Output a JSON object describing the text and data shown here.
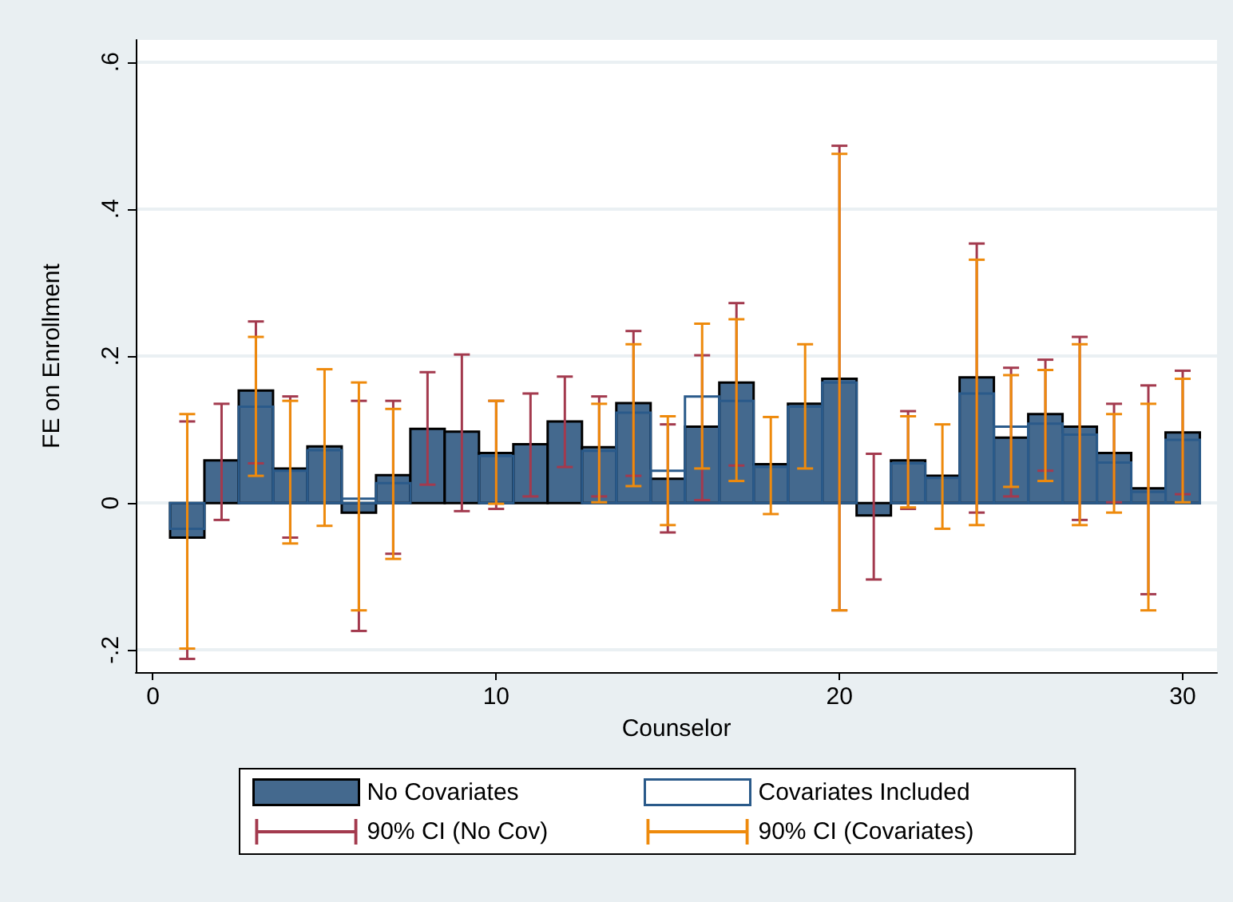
{
  "chart_data": {
    "type": "bar",
    "xlabel": "Counselor",
    "ylabel": "FE on Enrollment",
    "x": [
      1,
      2,
      3,
      4,
      5,
      6,
      7,
      8,
      9,
      10,
      11,
      12,
      13,
      14,
      15,
      16,
      17,
      18,
      19,
      20,
      21,
      22,
      23,
      24,
      25,
      26,
      27,
      28,
      29,
      30
    ],
    "series": [
      {
        "name": "No Covariates",
        "color": "#44698e",
        "values": [
          -0.047,
          0.058,
          0.153,
          0.047,
          0.077,
          -0.013,
          0.038,
          0.101,
          0.097,
          0.068,
          0.08,
          0.111,
          0.076,
          0.136,
          0.033,
          0.104,
          0.164,
          0.053,
          0.135,
          0.169,
          -0.017,
          0.058,
          0.037,
          0.171,
          0.089,
          0.121,
          0.104,
          0.068,
          0.02,
          0.096
        ],
        "errors": [
          [
            -0.212,
            0.111
          ],
          [
            -0.023,
            0.135
          ],
          [
            0.054,
            0.247
          ],
          [
            -0.047,
            0.145
          ],
          null,
          [
            -0.174,
            0.139
          ],
          [
            -0.069,
            0.139
          ],
          [
            0.025,
            0.178
          ],
          [
            -0.011,
            0.202
          ],
          [
            -0.008,
            0.139
          ],
          [
            0.009,
            0.149
          ],
          [
            0.049,
            0.172
          ],
          [
            0.009,
            0.145
          ],
          [
            0.037,
            0.234
          ],
          [
            -0.04,
            0.107
          ],
          [
            0.004,
            0.201
          ],
          [
            0.051,
            0.272
          ],
          null,
          null,
          [
            -0.146,
            0.486
          ],
          [
            -0.104,
            0.067
          ],
          [
            -0.008,
            0.125
          ],
          null,
          [
            -0.013,
            0.353
          ],
          [
            0.009,
            0.184
          ],
          [
            0.044,
            0.195
          ],
          [
            -0.023,
            0.226
          ],
          [
            0.001,
            0.135
          ],
          [
            -0.124,
            0.16
          ],
          [
            0.012,
            0.18
          ]
        ]
      },
      {
        "name": "Covariates Included",
        "color": "#2a5a8a",
        "values": [
          -0.035,
          null,
          0.131,
          0.044,
          0.072,
          0.006,
          0.027,
          null,
          null,
          0.064,
          null,
          null,
          0.071,
          0.123,
          0.044,
          0.145,
          0.139,
          0.049,
          0.131,
          0.164,
          null,
          0.054,
          0.034,
          0.149,
          0.104,
          0.108,
          0.093,
          0.055,
          0.015,
          0.086
        ],
        "errors": [
          [
            -0.198,
            0.121
          ],
          null,
          [
            0.037,
            0.226
          ],
          [
            -0.055,
            0.139
          ],
          [
            -0.031,
            0.182
          ],
          [
            -0.146,
            0.164
          ],
          [
            -0.076,
            0.128
          ],
          null,
          null,
          [
            -0.001,
            0.139
          ],
          null,
          null,
          [
            0.001,
            0.135
          ],
          [
            0.023,
            0.216
          ],
          [
            -0.03,
            0.118
          ],
          [
            0.047,
            0.244
          ],
          [
            0.03,
            0.25
          ],
          [
            -0.015,
            0.117
          ],
          [
            0.047,
            0.216
          ],
          [
            -0.146,
            0.475
          ],
          null,
          [
            -0.006,
            0.118
          ],
          [
            -0.035,
            0.107
          ],
          [
            -0.03,
            0.331
          ],
          [
            0.022,
            0.174
          ],
          [
            0.03,
            0.181
          ],
          [
            -0.03,
            0.216
          ],
          [
            -0.013,
            0.121
          ],
          [
            -0.146,
            0.135
          ],
          [
            0.001,
            0.169
          ]
        ]
      }
    ],
    "annotations": [
      "90% CI (No Cov)",
      "90% CI (Covariates)"
    ],
    "xlim": [
      -0.5,
      31
    ],
    "xticks": [
      0,
      10,
      20,
      30
    ],
    "ylim": [
      -0.23,
      0.63
    ],
    "yticks": [
      {
        "value": -0.2,
        "label": "-.2"
      },
      0,
      {
        "value": 0.2,
        "label": ".2"
      },
      {
        "value": 0.4,
        "label": ".4"
      },
      {
        "value": 0.6,
        "label": ".6"
      }
    ],
    "grid": "y",
    "legend": "bottom"
  }
}
